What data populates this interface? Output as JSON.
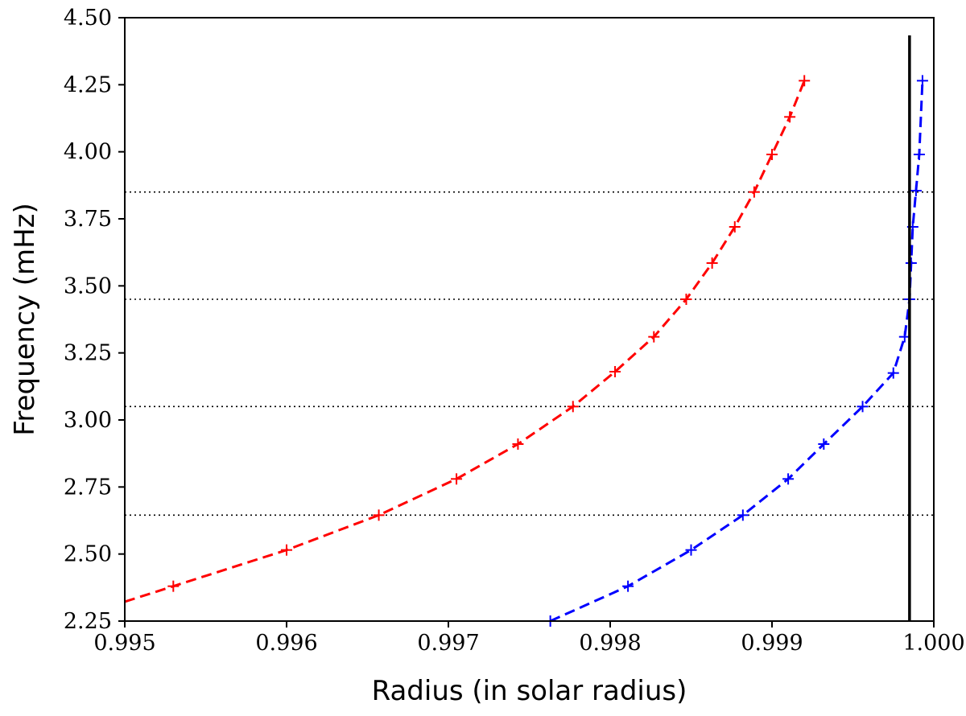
{
  "chart_data": {
    "type": "line",
    "title": "",
    "xlabel": "Radius (in solar radius)",
    "ylabel": "Frequency (mHz)",
    "xlim": [
      0.995,
      1.0
    ],
    "ylim": [
      2.25,
      4.5
    ],
    "xticks": [
      "0.995",
      "0.996",
      "0.997",
      "0.998",
      "0.999",
      "1.000"
    ],
    "yticks": [
      "2.25",
      "2.50",
      "2.75",
      "3.00",
      "3.25",
      "3.50",
      "3.75",
      "4.00",
      "4.25",
      "4.50"
    ],
    "grid": false,
    "legend": "none",
    "hlines": [
      2.25,
      2.645,
      3.05,
      3.45,
      3.85
    ],
    "vline_x": 0.99985,
    "series": [
      {
        "color": "#ff0000",
        "linestyle": "dashed",
        "marker": "plus",
        "x": [
          0.9953,
          0.996,
          0.99657,
          0.99705,
          0.99743,
          0.99777,
          0.99803,
          0.99827,
          0.99847,
          0.99863,
          0.99877,
          0.99889,
          0.999,
          0.99911,
          0.9992
        ],
        "y": [
          2.38,
          2.515,
          2.645,
          2.78,
          2.91,
          3.05,
          3.18,
          3.31,
          3.45,
          3.585,
          3.72,
          3.85,
          3.99,
          4.13,
          4.265
        ]
      },
      {
        "color": "#0000ff",
        "linestyle": "dashed",
        "marker": "plus",
        "x": [
          0.99763,
          0.99811,
          0.9985,
          0.99882,
          0.9991,
          0.99932,
          0.99956,
          0.99975,
          0.99982,
          0.99985,
          0.99986,
          0.99987,
          0.99989,
          0.99991,
          0.99993
        ],
        "y": [
          2.25,
          2.38,
          2.515,
          2.645,
          2.78,
          2.91,
          3.05,
          3.175,
          3.31,
          3.45,
          3.585,
          3.72,
          3.855,
          3.99,
          4.265
        ]
      }
    ]
  }
}
